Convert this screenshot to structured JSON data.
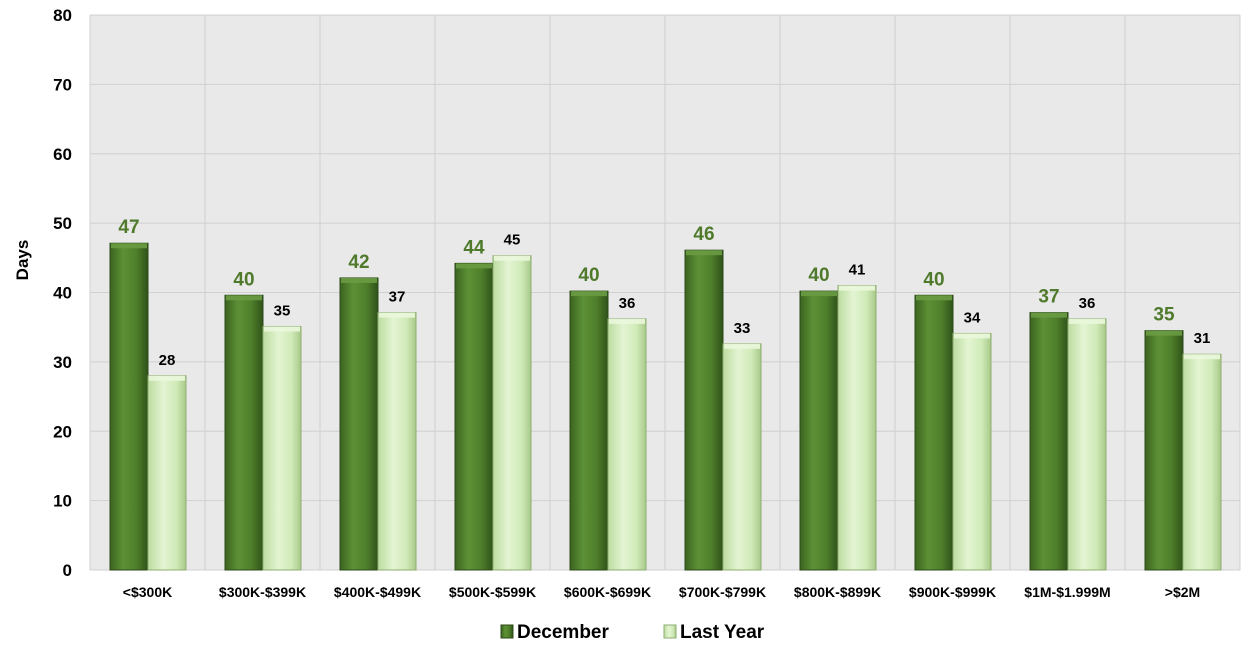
{
  "chart_data": {
    "type": "bar",
    "ylabel": "Days",
    "xlabel": "",
    "ylim": [
      0,
      80
    ],
    "yticks": [
      0,
      10,
      20,
      30,
      40,
      50,
      60,
      70,
      80
    ],
    "grid": true,
    "legend_position": "bottom-center",
    "categories": [
      "<$300K",
      "$300K-$399K",
      "$400K-$499K",
      "$500K-$599K",
      "$600K-$699K",
      "$700K-$799K",
      "$800K-$899K",
      "$900K-$999K",
      "$1M-$1.999M",
      ">$2M"
    ],
    "series": [
      {
        "name": "December",
        "color": "#4e7e2a",
        "values": [
          47.1,
          39.6,
          42.1,
          44.2,
          40.2,
          46.1,
          40.2,
          39.6,
          37.1,
          34.5
        ],
        "labels": [
          "47",
          "40",
          "42",
          "44",
          "40",
          "46",
          "40",
          "40",
          "37",
          "35"
        ]
      },
      {
        "name": "Last Year",
        "color": "#d3ecbc",
        "values": [
          28.0,
          35.1,
          37.1,
          45.3,
          36.2,
          32.6,
          41.0,
          34.1,
          36.2,
          31.1
        ],
        "labels": [
          "28",
          "35",
          "37",
          "45",
          "36",
          "33",
          "41",
          "34",
          "36",
          "31"
        ]
      }
    ]
  }
}
